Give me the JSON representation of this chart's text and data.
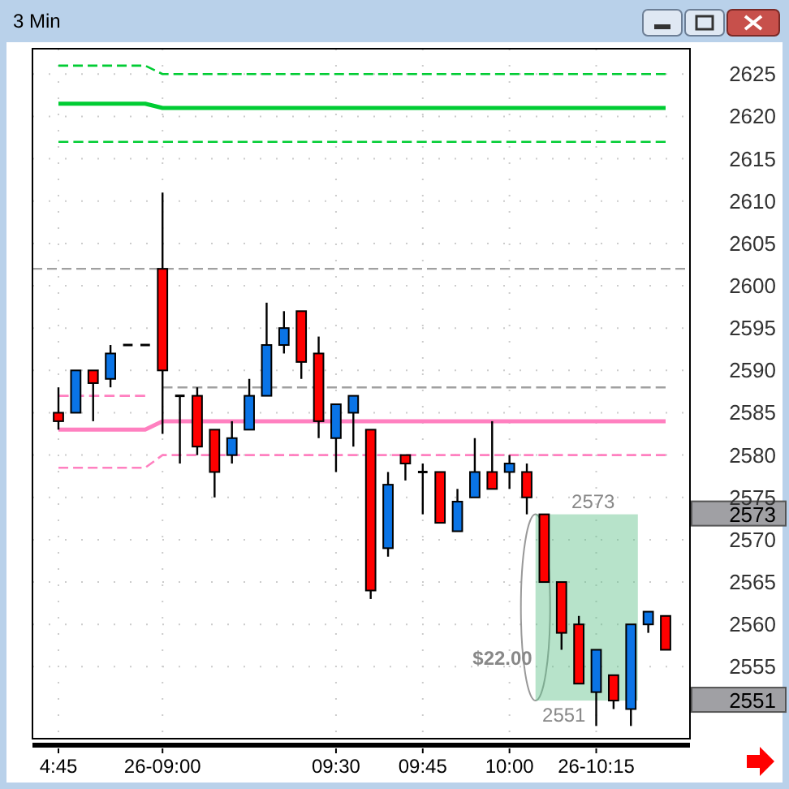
{
  "chart_data": {
    "type": "candlestick",
    "title": "3 Min",
    "categories": [
      "4:45",
      null,
      null,
      null,
      null,
      null,
      "26-09:00",
      null,
      null,
      null,
      null,
      null,
      null,
      null,
      null,
      null,
      "09:30",
      null,
      null,
      null,
      null,
      "09:45",
      null,
      null,
      null,
      null,
      "10:00",
      null,
      null,
      null,
      null,
      "26-10:15",
      null,
      null,
      null,
      null
    ],
    "ohlc": [
      [
        2585,
        2588,
        2583,
        2584
      ],
      [
        2585,
        2590,
        2585,
        2590
      ],
      [
        2590,
        2590,
        2584,
        2588.5
      ],
      [
        2589,
        2593,
        2588,
        2592
      ],
      [
        2593,
        2593,
        2593,
        2593
      ],
      [
        2593,
        2593,
        2593,
        2593
      ],
      [
        2602,
        2611,
        2582.5,
        2590
      ],
      [
        2587,
        2587,
        2579,
        2587
      ],
      [
        2587,
        2588,
        2580,
        2581
      ],
      [
        2583,
        2583,
        2575,
        2578
      ],
      [
        2580,
        2584,
        2579,
        2582
      ],
      [
        2583,
        2589,
        2583,
        2587
      ],
      [
        2587,
        2598,
        2587,
        2593
      ],
      [
        2593,
        2597,
        2592,
        2595
      ],
      [
        2597,
        2597,
        2589,
        2591
      ],
      [
        2592,
        2594,
        2582,
        2584
      ],
      [
        2582,
        2586,
        2578,
        2586
      ],
      [
        2585,
        2587,
        2581,
        2587
      ],
      [
        2583,
        2583,
        2563,
        2564
      ],
      [
        2569,
        2578,
        2568,
        2576.5
      ],
      [
        2580,
        2580,
        2577,
        2579
      ],
      [
        2578,
        2579,
        2573,
        2578
      ],
      [
        2578,
        2578,
        2572,
        2572
      ],
      [
        2571,
        2576,
        2571,
        2574.5
      ],
      [
        2575,
        2582,
        2575,
        2578
      ],
      [
        2578,
        2584,
        2576,
        2576
      ],
      [
        2578,
        2580,
        2576,
        2579
      ],
      [
        2578,
        2579,
        2573,
        2575
      ],
      [
        2573,
        2573,
        2565,
        2565
      ],
      [
        2565,
        2565,
        2557,
        2559
      ],
      [
        2560,
        2561,
        2553,
        2553
      ],
      [
        2552,
        2557,
        2548,
        2557
      ],
      [
        2554,
        2554,
        2550,
        2551
      ],
      [
        2550,
        2560,
        2548,
        2560
      ],
      [
        2560,
        2561.5,
        2559,
        2561.5
      ],
      [
        2561,
        2561,
        2557,
        2557
      ]
    ],
    "series": [
      {
        "type": "line",
        "color": "#00cc33",
        "line_style": "dashed",
        "values": [
          2626,
          2626,
          2626,
          2626,
          2626,
          2626,
          2625,
          2625,
          2625,
          2625,
          2625,
          2625,
          2625,
          2625,
          2625,
          2625,
          2625,
          2625,
          2625,
          2625,
          2625,
          2625,
          2625,
          2625,
          2625,
          2625,
          2625,
          2625,
          2625,
          2625,
          2625,
          2625,
          2625,
          2625,
          2625,
          2625
        ]
      },
      {
        "type": "line",
        "color": "#00cc33",
        "line_style": "solid",
        "values": [
          2621.5,
          2621.5,
          2621.5,
          2621.5,
          2621.5,
          2621.5,
          2621,
          2621,
          2621,
          2621,
          2621,
          2621,
          2621,
          2621,
          2621,
          2621,
          2621,
          2621,
          2621,
          2621,
          2621,
          2621,
          2621,
          2621,
          2621,
          2621,
          2621,
          2621,
          2621,
          2621,
          2621,
          2621,
          2621,
          2621,
          2621,
          2621
        ]
      },
      {
        "type": "line",
        "color": "#00cc33",
        "line_style": "dashed",
        "values": [
          2617,
          2617,
          2617,
          2617,
          2617,
          2617,
          2617,
          2617,
          2617,
          2617,
          2617,
          2617,
          2617,
          2617,
          2617,
          2617,
          2617,
          2617,
          2617,
          2617,
          2617,
          2617,
          2617,
          2617,
          2617,
          2617,
          2617,
          2617,
          2617,
          2617,
          2617,
          2617,
          2617,
          2617,
          2617,
          2617
        ]
      },
      {
        "type": "line",
        "color": "#ff80c0",
        "line_style": "dashed",
        "values": [
          2587,
          2587,
          2587,
          2587,
          2587,
          2587,
          null,
          null,
          null,
          null,
          null,
          null,
          null,
          null,
          null,
          null,
          null,
          null,
          null,
          null,
          null,
          null,
          null,
          null,
          null,
          null,
          null,
          null,
          null,
          null,
          null,
          null,
          null,
          null,
          null,
          null
        ]
      },
      {
        "type": "line",
        "color": "#a0a0a0",
        "line_style": "dashed",
        "values": [
          null,
          null,
          null,
          null,
          null,
          null,
          2588,
          2588,
          2588,
          2588,
          2588,
          2588,
          2588,
          2588,
          2588,
          2588,
          2588,
          2588,
          2588,
          2588,
          2588,
          2588,
          2588,
          2588,
          2588,
          2588,
          2588,
          2588,
          2588,
          2588,
          2588,
          2588,
          2588,
          2588,
          2588,
          2588
        ]
      },
      {
        "type": "line",
        "color": "#ff80c0",
        "line_style": "solid",
        "values": [
          2583,
          2583,
          2583,
          2583,
          2583,
          2583,
          2584,
          2584,
          2584,
          2584,
          2584,
          2584,
          2584,
          2584,
          2584,
          2584,
          2584,
          2584,
          2584,
          2584,
          2584,
          2584,
          2584,
          2584,
          2584,
          2584,
          2584,
          2584,
          2584,
          2584,
          2584,
          2584,
          2584,
          2584,
          2584,
          2584
        ]
      },
      {
        "type": "line",
        "color": "#ff80c0",
        "line_style": "dashed",
        "values": [
          2578.5,
          2578.5,
          2578.5,
          2578.5,
          2578.5,
          2578.5,
          2580,
          2580,
          2580,
          2580,
          2580,
          2580,
          2580,
          2580,
          2580,
          2580,
          2580,
          2580,
          2580,
          2580,
          2580,
          2580,
          2580,
          2580,
          2580,
          2580,
          2580,
          2580,
          2580,
          2580,
          2580,
          2580,
          2580,
          2580,
          2580,
          2580
        ]
      }
    ],
    "ref_lines": [
      {
        "axis": "y",
        "value": 2602,
        "color": "#a0a0a0",
        "line_style": "dashed"
      }
    ],
    "annotations": [
      "2573",
      "2551",
      "$22.00"
    ],
    "ylim": [
      2546.5,
      2628
    ],
    "yticks": [
      {
        "value": 2551,
        "label": "2551"
      },
      2555,
      2560,
      2565,
      2570,
      {
        "value": 2573,
        "label": "2573"
      },
      2575,
      2580,
      2585,
      2590,
      2595,
      2600,
      2605,
      2610,
      2615,
      2620,
      2625
    ],
    "grid": true
  }
}
